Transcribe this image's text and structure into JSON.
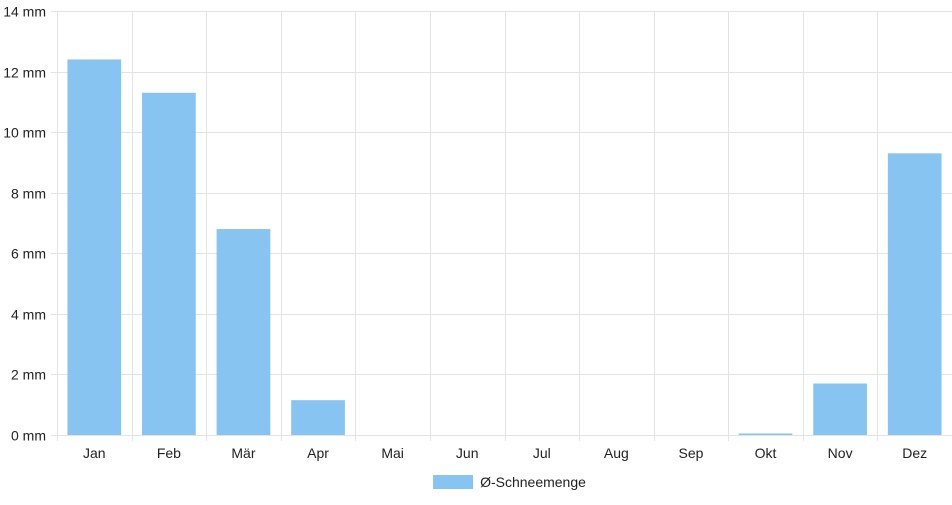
{
  "chart_data": {
    "type": "bar",
    "categories": [
      "Jan",
      "Feb",
      "Mär",
      "Apr",
      "Mai",
      "Jun",
      "Jul",
      "Aug",
      "Sep",
      "Okt",
      "Nov",
      "Dez"
    ],
    "series": [
      {
        "name": "Ø-Schneemenge",
        "values": [
          12.4,
          11.3,
          6.8,
          1.15,
          0,
          0,
          0,
          0,
          0,
          0.05,
          1.7,
          9.3
        ],
        "color": "#88c4f1"
      }
    ],
    "ylim": [
      0,
      14
    ],
    "yticks": [
      0,
      2,
      4,
      6,
      8,
      10,
      12,
      14
    ],
    "y_tick_suffix": " mm",
    "grid": true,
    "legend_position": "bottom-center",
    "colors": {
      "grid": "#e3e3e3",
      "axis_text": "#222222"
    }
  }
}
